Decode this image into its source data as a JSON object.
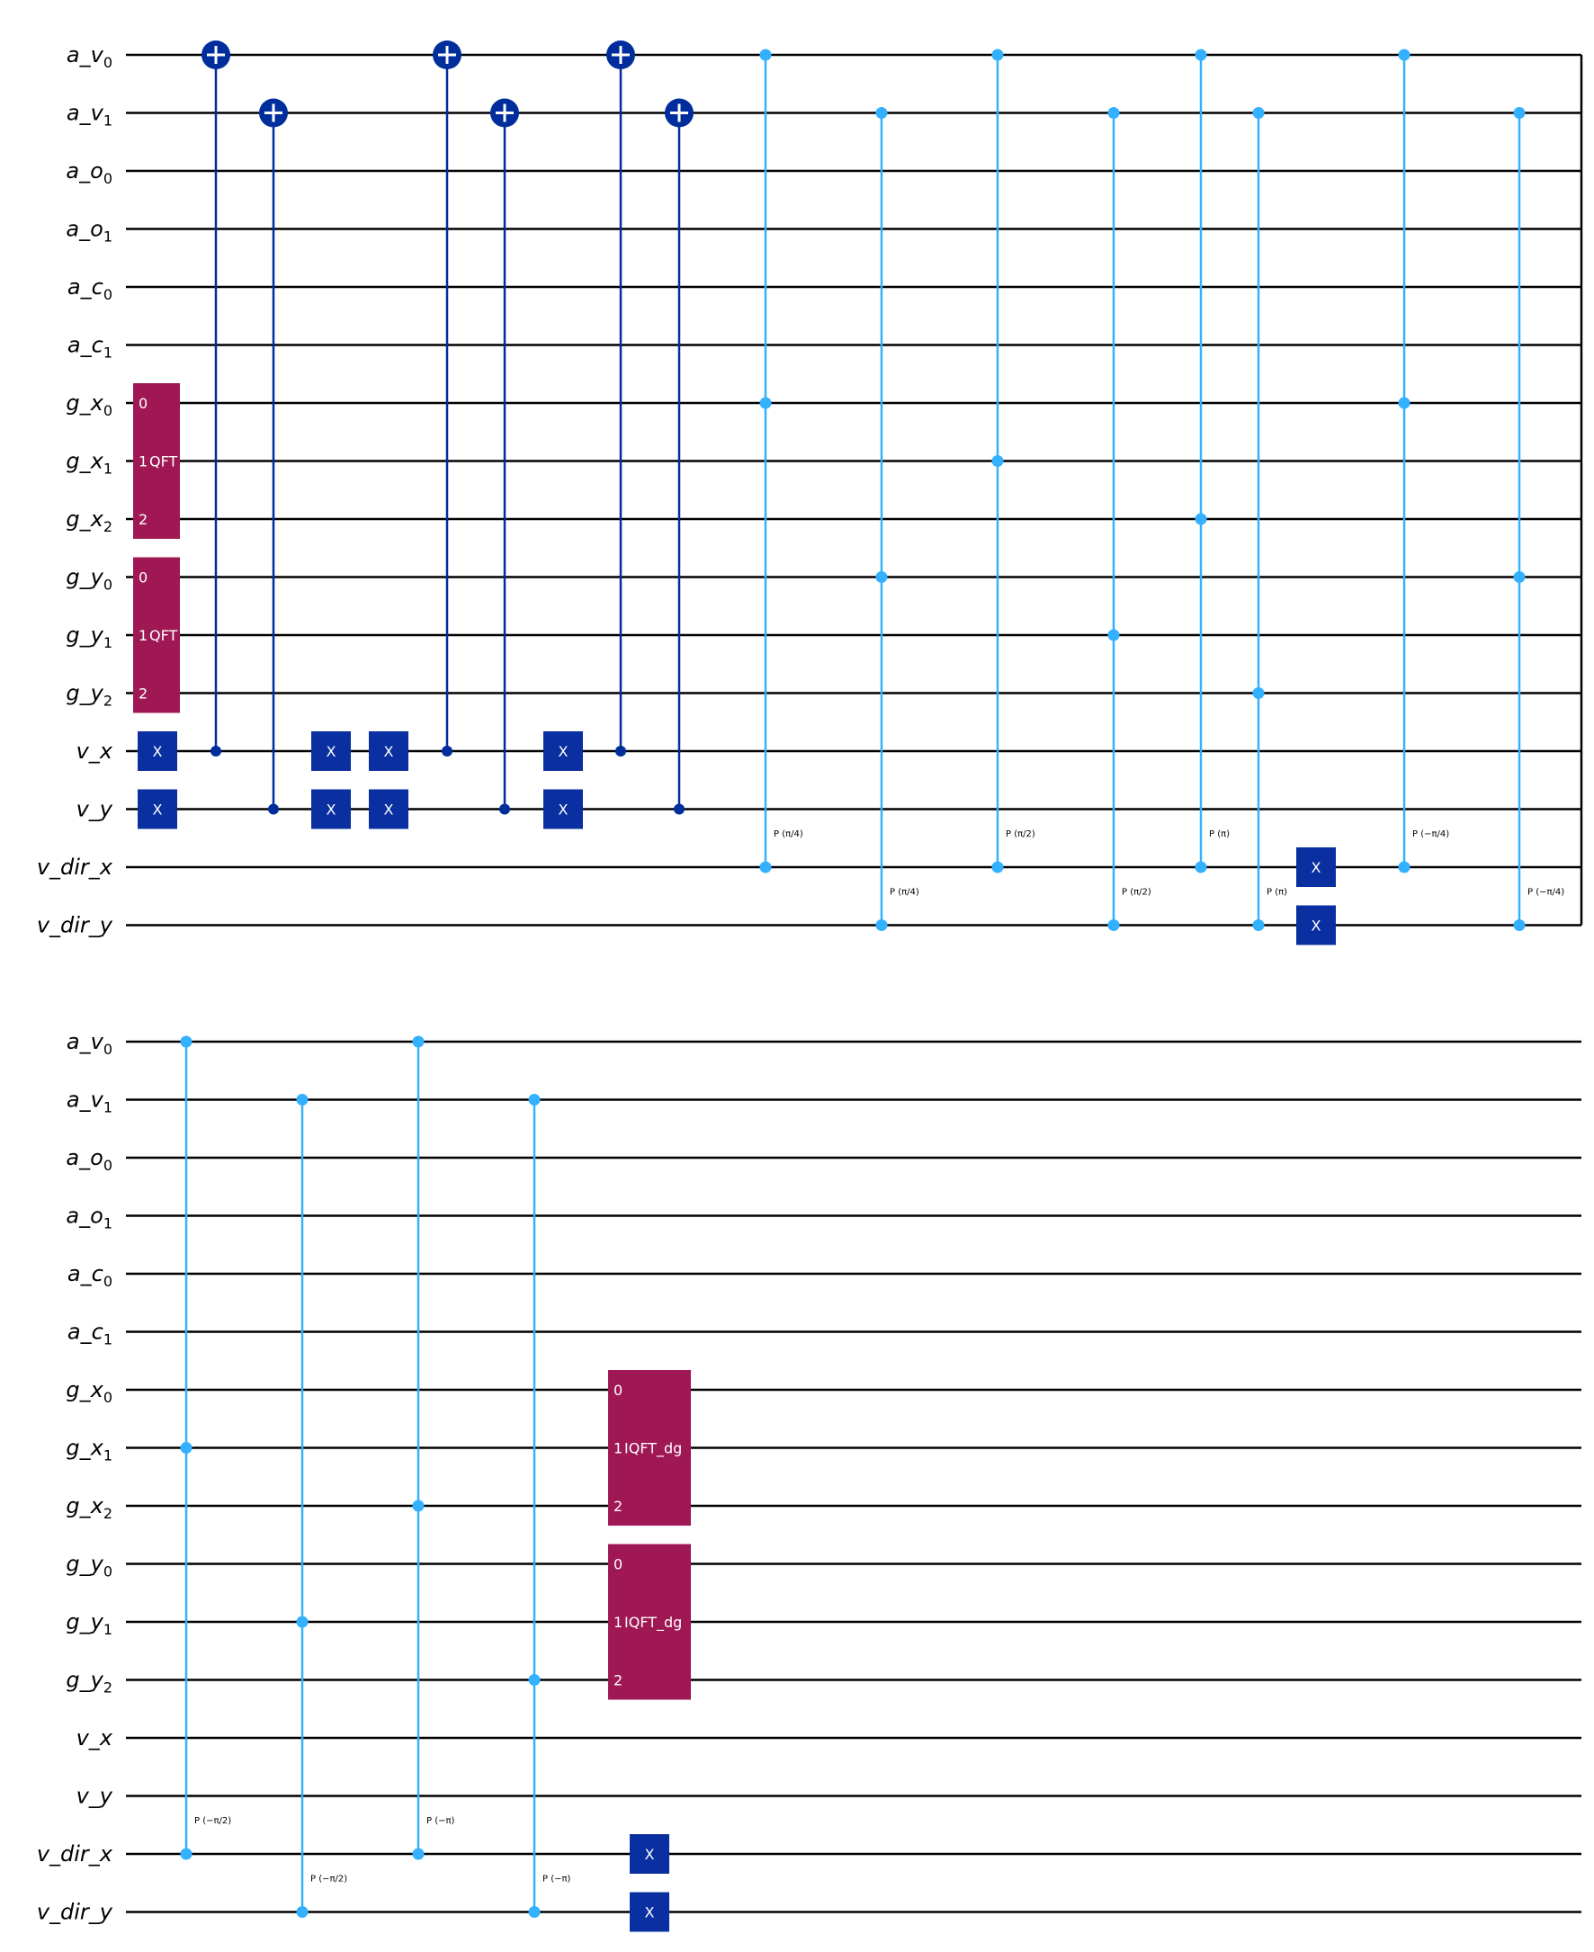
{
  "qubits": [
    {
      "name": "a_v",
      "sub": "0"
    },
    {
      "name": "a_v",
      "sub": "1"
    },
    {
      "name": "a_o",
      "sub": "0"
    },
    {
      "name": "a_o",
      "sub": "1"
    },
    {
      "name": "a_c",
      "sub": "0"
    },
    {
      "name": "a_c",
      "sub": "1"
    },
    {
      "name": "g_x",
      "sub": "0"
    },
    {
      "name": "g_x",
      "sub": "1"
    },
    {
      "name": "g_x",
      "sub": "2"
    },
    {
      "name": "g_y",
      "sub": "0"
    },
    {
      "name": "g_y",
      "sub": "1"
    },
    {
      "name": "g_y",
      "sub": "2"
    },
    {
      "name": "v_x",
      "sub": ""
    },
    {
      "name": "v_y",
      "sub": ""
    },
    {
      "name": "v_dir_x",
      "sub": ""
    },
    {
      "name": "v_dir_y",
      "sub": ""
    }
  ],
  "colors": {
    "wire": "#000000",
    "x_gate": "#0A2FA0",
    "cnot": "#002D9C",
    "phase": "#33B1FF",
    "qft_box": "#9F1853"
  },
  "panels": [
    {
      "gates": [
        {
          "type": "box",
          "label": "QFT",
          "qubits": [
            6,
            7,
            8
          ],
          "indices": [
            "0",
            "1",
            "2"
          ],
          "col": 0
        },
        {
          "type": "box",
          "label": "QFT",
          "qubits": [
            9,
            10,
            11
          ],
          "indices": [
            "0",
            "1",
            "2"
          ],
          "col": 0
        },
        {
          "type": "x",
          "qubit": 12,
          "col": 0
        },
        {
          "type": "x",
          "qubit": 13,
          "col": 0
        },
        {
          "type": "cx",
          "control": 12,
          "target": 0,
          "col": 1
        },
        {
          "type": "cx",
          "control": 13,
          "target": 1,
          "col": 2
        },
        {
          "type": "x",
          "qubit": 12,
          "col": 3
        },
        {
          "type": "x",
          "qubit": 13,
          "col": 3
        },
        {
          "type": "x",
          "qubit": 12,
          "col": 4
        },
        {
          "type": "x",
          "qubit": 13,
          "col": 4
        },
        {
          "type": "cx",
          "control": 12,
          "target": 0,
          "col": 5
        },
        {
          "type": "cx",
          "control": 13,
          "target": 1,
          "col": 6
        },
        {
          "type": "x",
          "qubit": 12,
          "col": 7
        },
        {
          "type": "x",
          "qubit": 13,
          "col": 7
        },
        {
          "type": "cx",
          "control": 12,
          "target": 0,
          "col": 8
        },
        {
          "type": "cx",
          "control": 13,
          "target": 1,
          "col": 9
        },
        {
          "type": "cp",
          "qubits": [
            0,
            6,
            14
          ],
          "label": "P (π/4)",
          "col": 10
        },
        {
          "type": "cp",
          "qubits": [
            1,
            9,
            15
          ],
          "label": "P (π/4)",
          "col": 11
        },
        {
          "type": "cp",
          "qubits": [
            0,
            7,
            14
          ],
          "label": "P (π/2)",
          "col": 12
        },
        {
          "type": "cp",
          "qubits": [
            1,
            10,
            15
          ],
          "label": "P (π/2)",
          "col": 13
        },
        {
          "type": "cp",
          "qubits": [
            0,
            8,
            14
          ],
          "label": "P (π)",
          "col": 14
        },
        {
          "type": "cp",
          "qubits": [
            1,
            11,
            15
          ],
          "label": "P (π)",
          "col": 15
        },
        {
          "type": "x",
          "qubit": 14,
          "col": 16
        },
        {
          "type": "x",
          "qubit": 15,
          "col": 16
        },
        {
          "type": "cp",
          "qubits": [
            0,
            6,
            14
          ],
          "label": "P (−π/4)",
          "col": 17
        },
        {
          "type": "cp",
          "qubits": [
            1,
            9,
            15
          ],
          "label": "P (−π/4)",
          "col": 18
        }
      ]
    },
    {
      "gates": [
        {
          "type": "cp",
          "qubits": [
            0,
            7,
            14
          ],
          "label": "P (−π/2)",
          "col": 0
        },
        {
          "type": "cp",
          "qubits": [
            1,
            10,
            15
          ],
          "label": "P (−π/2)",
          "col": 1
        },
        {
          "type": "cp",
          "qubits": [
            0,
            8,
            14
          ],
          "label": "P (−π)",
          "col": 2
        },
        {
          "type": "cp",
          "qubits": [
            1,
            11,
            15
          ],
          "label": "P (−π)",
          "col": 3
        },
        {
          "type": "box",
          "label": "IQFT_dg",
          "qubits": [
            6,
            7,
            8
          ],
          "indices": [
            "0",
            "1",
            "2"
          ],
          "col": 4
        },
        {
          "type": "box",
          "label": "IQFT_dg",
          "qubits": [
            9,
            10,
            11
          ],
          "indices": [
            "0",
            "1",
            "2"
          ],
          "col": 4
        },
        {
          "type": "x",
          "qubit": 14,
          "col": 4
        },
        {
          "type": "x",
          "qubit": 15,
          "col": 4
        }
      ]
    }
  ]
}
